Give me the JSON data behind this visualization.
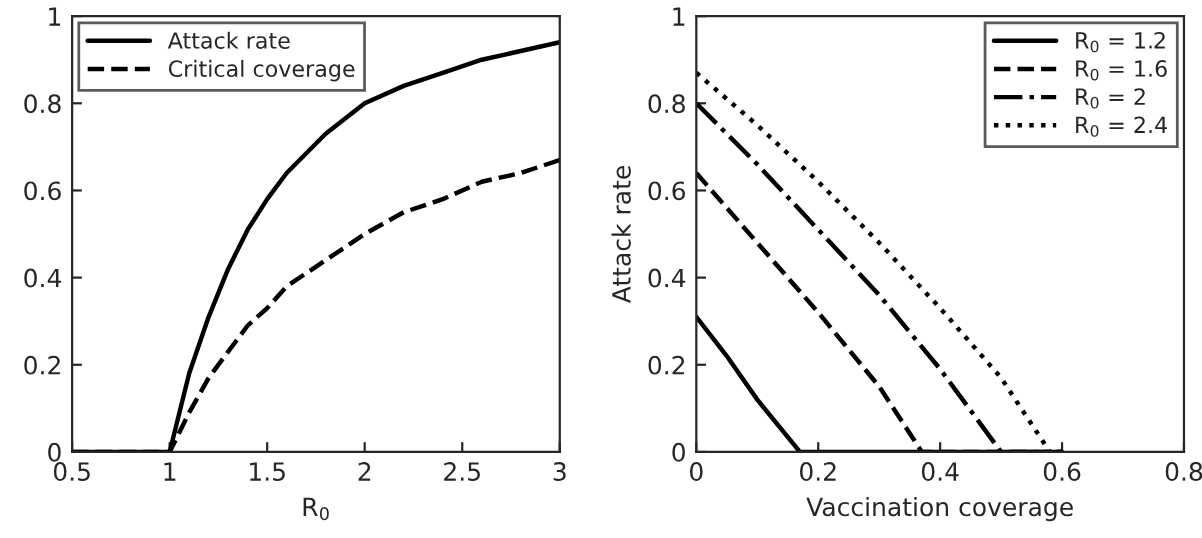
{
  "chart_data": [
    {
      "type": "line",
      "xlabel": "R$_{0}$",
      "xlim": [
        0.5,
        3
      ],
      "xticks": [
        0.5,
        1,
        1.5,
        2,
        2.5,
        3
      ],
      "ylim": [
        0,
        1
      ],
      "yticks": [
        0,
        0.2,
        0.4,
        0.6,
        0.8,
        1
      ],
      "grid": false,
      "legend": "top left",
      "series": [
        {
          "name": "Attack rate",
          "color": "#000000",
          "line_style": "solid",
          "x": [
            0.5,
            1,
            1.1,
            1.2,
            1.3,
            1.4,
            1.5,
            1.6,
            1.8,
            2,
            2.2,
            2.4,
            2.6,
            2.8,
            3
          ],
          "values": [
            0,
            0,
            0.18,
            0.31,
            0.42,
            0.51,
            0.58,
            0.64,
            0.73,
            0.8,
            0.84,
            0.87,
            0.9,
            0.92,
            0.94
          ]
        },
        {
          "name": "Critical coverage",
          "color": "#000000",
          "line_style": "dashed",
          "x": [
            0.5,
            1,
            1.1,
            1.2,
            1.3,
            1.4,
            1.5,
            1.6,
            1.8,
            2,
            2.2,
            2.4,
            2.6,
            2.8,
            3
          ],
          "values": [
            0,
            0,
            0.09,
            0.17,
            0.23,
            0.29,
            0.33,
            0.38,
            0.44,
            0.5,
            0.55,
            0.58,
            0.62,
            0.64,
            0.67
          ]
        }
      ]
    },
    {
      "type": "line",
      "xlabel": "Vaccination coverage",
      "ylabel": "Attack rate",
      "xlim": [
        0,
        0.8
      ],
      "xticks": [
        0,
        0.2,
        0.4,
        0.6,
        0.8
      ],
      "ylim": [
        0,
        1
      ],
      "yticks": [
        0,
        0.2,
        0.4,
        0.6,
        0.8,
        1
      ],
      "grid": false,
      "legend": "top right",
      "series": [
        {
          "name": "R$_{0}$ = 1.2",
          "color": "#000000",
          "line_style": "solid",
          "x": [
            0,
            0.05,
            0.1,
            0.17,
            0.6
          ],
          "values": [
            0.31,
            0.22,
            0.12,
            0,
            0
          ]
        },
        {
          "name": "R$_{0}$ = 1.6",
          "color": "#000000",
          "line_style": "dashed",
          "x": [
            0,
            0.1,
            0.2,
            0.3,
            0.37,
            0.6
          ],
          "values": [
            0.64,
            0.48,
            0.32,
            0.15,
            0,
            0
          ]
        },
        {
          "name": "R$_{0}$ = 2",
          "color": "#000000",
          "line_style": "dashdot",
          "x": [
            0,
            0.1,
            0.2,
            0.3,
            0.4,
            0.5,
            0.6
          ],
          "values": [
            0.8,
            0.66,
            0.51,
            0.36,
            0.19,
            0,
            0
          ]
        },
        {
          "name": "R$_{0}$ = 2.4",
          "color": "#000000",
          "line_style": "dotted",
          "x": [
            0,
            0.1,
            0.2,
            0.3,
            0.4,
            0.5,
            0.58,
            0.6
          ],
          "values": [
            0.87,
            0.75,
            0.62,
            0.48,
            0.33,
            0.17,
            0,
            0
          ]
        }
      ]
    }
  ]
}
